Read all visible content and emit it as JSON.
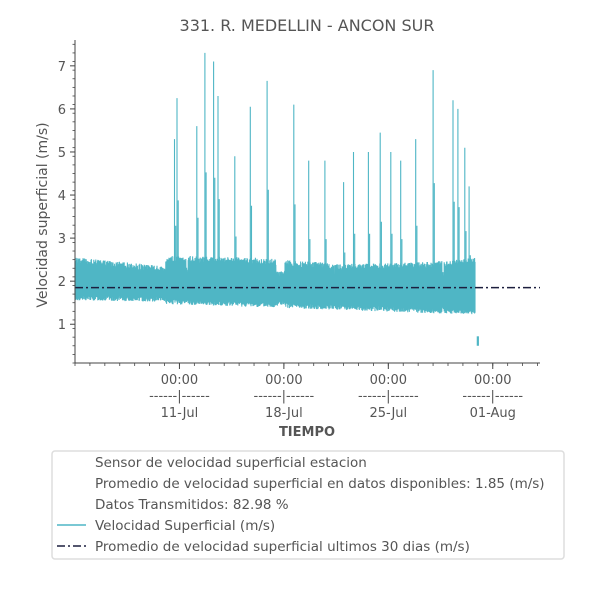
{
  "chart_data": {
    "type": "line",
    "title": "331. R. MEDELLIN - ANCON SUR",
    "xlabel": "TIEMPO",
    "ylabel": "Velocidad superficial (m/s)",
    "ylim": [
      0.1,
      7.6
    ],
    "y_ticks": [
      1,
      2,
      3,
      4,
      5,
      6,
      7
    ],
    "xlim": [
      "2023-07-04T00:00",
      "2023-08-04T04:00"
    ],
    "x_ticks": [
      {
        "date": "2023-07-11T00:00",
        "time": "00:00",
        "sep": "------|------",
        "day": "11-Jul"
      },
      {
        "date": "2023-07-18T00:00",
        "time": "00:00",
        "sep": "------|------",
        "day": "18-Jul"
      },
      {
        "date": "2023-07-25T00:00",
        "time": "00:00",
        "sep": "------|------",
        "day": "25-Jul"
      },
      {
        "date": "2023-08-01T00:00",
        "time": "00:00",
        "sep": "------|------",
        "day": "01-Aug"
      }
    ],
    "series": [
      {
        "name": "Velocidad Superficial (m/s)",
        "color": "#4fb6c5",
        "start": "2023-07-04T00:00",
        "end": "2023-07-30T20:00",
        "band_low": [
          [
            0,
            1.55
          ],
          [
            6,
            1.52
          ],
          [
            12,
            1.45
          ],
          [
            18,
            1.38
          ],
          [
            24,
            1.3
          ],
          [
            26.8,
            1.28
          ]
        ],
        "band_high": [
          [
            0,
            2.55
          ],
          [
            6,
            2.35
          ],
          [
            12,
            2.3
          ],
          [
            18,
            2.15
          ],
          [
            24,
            2.2
          ],
          [
            26.8,
            2.3
          ]
        ],
        "spikes": [
          {
            "x": "2023-07-10T16:00",
            "y": 5.3
          },
          {
            "x": "2023-07-10T20:00",
            "y": 6.25
          },
          {
            "x": "2023-07-12T04:00",
            "y": 5.6
          },
          {
            "x": "2023-07-12T17:00",
            "y": 7.3
          },
          {
            "x": "2023-07-13T07:00",
            "y": 7.1
          },
          {
            "x": "2023-07-13T14:00",
            "y": 6.3
          },
          {
            "x": "2023-07-14T17:00",
            "y": 4.9
          },
          {
            "x": "2023-07-15T18:00",
            "y": 6.05
          },
          {
            "x": "2023-07-16T21:00",
            "y": 6.65
          },
          {
            "x": "2023-07-18T16:00",
            "y": 6.1
          },
          {
            "x": "2023-07-19T16:00",
            "y": 4.8
          },
          {
            "x": "2023-07-20T18:00",
            "y": 4.8
          },
          {
            "x": "2023-07-22T00:00",
            "y": 4.3
          },
          {
            "x": "2023-07-22T16:00",
            "y": 5.0
          },
          {
            "x": "2023-07-23T16:00",
            "y": 5.0
          },
          {
            "x": "2023-07-24T11:00",
            "y": 5.45
          },
          {
            "x": "2023-07-25T04:00",
            "y": 5.0
          },
          {
            "x": "2023-07-25T20:00",
            "y": 4.8
          },
          {
            "x": "2023-07-26T20:00",
            "y": 5.3
          },
          {
            "x": "2023-07-28T00:00",
            "y": 6.9
          },
          {
            "x": "2023-07-29T08:00",
            "y": 6.2
          },
          {
            "x": "2023-07-29T16:00",
            "y": 6.0
          },
          {
            "x": "2023-07-30T03:00",
            "y": 5.1
          },
          {
            "x": "2023-07-30T10:00",
            "y": 4.2
          }
        ],
        "isolated_points": [
          {
            "x": "2023-07-31T00:00",
            "y": 0.6
          }
        ]
      },
      {
        "name": "Promedio de velocidad superficial ultimos 30 dias (m/s)",
        "color": "#1c1f3e",
        "style": "dashdot",
        "y": 1.85
      }
    ],
    "legend": {
      "placement": "bottom",
      "entries": [
        "Sensor de velocidad superficial estacion",
        "Promedio de velocidad superficial en datos disponibles: 1.85 (m/s)",
        "Datos Transmitidos: 82.98 %",
        "Velocidad Superficial (m/s)",
        "Promedio de velocidad superficial ultimos 30 dias (m/s)"
      ]
    },
    "grid": false
  }
}
